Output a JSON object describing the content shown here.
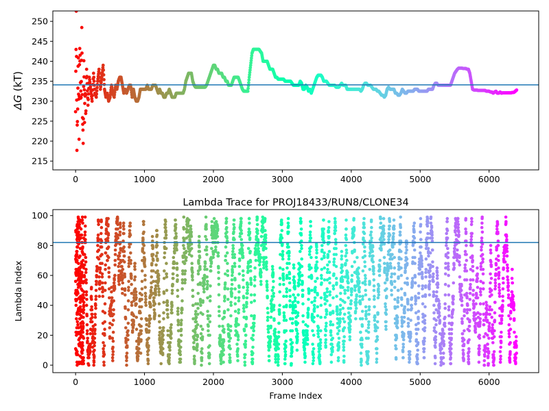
{
  "chart_data": [
    {
      "type": "scatter",
      "title": "",
      "xlabel": "",
      "ylabel_symbol": "ΔG",
      "ylabel_unit": " (kT)",
      "xlim": [
        -330,
        6720
      ],
      "ylim": [
        212.8,
        252.6
      ],
      "xticks": [
        0,
        1000,
        2000,
        3000,
        4000,
        5000,
        6000
      ],
      "yticks": [
        215,
        220,
        225,
        230,
        235,
        240,
        245,
        250
      ],
      "hline": 234.1,
      "hline_color": "#1f77b4",
      "colormap": "rainbow",
      "n_frames": 6400,
      "trace": [
        [
          0,
          230
        ],
        [
          10,
          250
        ],
        [
          20,
          220
        ],
        [
          30,
          230
        ],
        [
          40,
          240
        ],
        [
          50,
          222
        ],
        [
          60,
          246
        ],
        [
          70,
          236
        ],
        [
          80,
          228
        ],
        [
          90,
          248
        ],
        [
          100,
          226
        ],
        [
          110,
          219
        ],
        [
          120,
          241
        ],
        [
          130,
          226
        ],
        [
          140,
          233
        ],
        [
          150,
          225
        ],
        [
          160,
          238
        ],
        [
          180,
          229
        ],
        [
          200,
          236
        ],
        [
          220,
          233
        ],
        [
          240,
          230
        ],
        [
          260,
          237
        ],
        [
          280,
          232
        ],
        [
          300,
          231
        ],
        [
          320,
          235
        ],
        [
          340,
          238
        ],
        [
          360,
          233
        ],
        [
          380,
          236
        ],
        [
          400,
          239
        ],
        [
          420,
          233
        ],
        [
          440,
          231
        ],
        [
          460,
          232
        ],
        [
          480,
          230
        ],
        [
          500,
          231
        ],
        [
          520,
          234
        ],
        [
          540,
          232
        ],
        [
          560,
          231
        ],
        [
          580,
          234
        ],
        [
          600,
          233
        ],
        [
          620,
          235
        ],
        [
          640,
          236
        ],
        [
          660,
          236
        ],
        [
          680,
          234
        ],
        [
          700,
          232
        ],
        [
          720,
          233
        ],
        [
          740,
          232
        ],
        [
          760,
          233
        ],
        [
          780,
          234
        ],
        [
          800,
          234
        ],
        [
          820,
          231
        ],
        [
          840,
          233
        ],
        [
          860,
          231
        ],
        [
          880,
          230
        ],
        [
          900,
          230
        ],
        [
          920,
          231
        ],
        [
          940,
          233
        ],
        [
          960,
          233
        ],
        [
          980,
          233
        ],
        [
          1000,
          233
        ],
        [
          1020,
          233
        ],
        [
          1040,
          234
        ],
        [
          1060,
          233
        ],
        [
          1080,
          233
        ],
        [
          1100,
          233
        ],
        [
          1120,
          234
        ],
        [
          1140,
          234
        ],
        [
          1160,
          234
        ],
        [
          1180,
          233
        ],
        [
          1200,
          232
        ],
        [
          1220,
          233
        ],
        [
          1240,
          232
        ],
        [
          1260,
          232
        ],
        [
          1280,
          231
        ],
        [
          1300,
          231
        ],
        [
          1320,
          232
        ],
        [
          1340,
          232
        ],
        [
          1360,
          233
        ],
        [
          1380,
          232
        ],
        [
          1400,
          231
        ],
        [
          1420,
          231
        ],
        [
          1440,
          231
        ],
        [
          1460,
          232
        ],
        [
          1480,
          232
        ],
        [
          1500,
          232
        ],
        [
          1520,
          232
        ],
        [
          1540,
          232
        ],
        [
          1560,
          232
        ],
        [
          1580,
          233
        ],
        [
          1600,
          235
        ],
        [
          1620,
          236
        ],
        [
          1640,
          237
        ],
        [
          1660,
          237
        ],
        [
          1680,
          237
        ],
        [
          1700,
          235
        ],
        [
          1720,
          234
        ],
        [
          1740,
          233.5
        ],
        [
          1760,
          233.5
        ],
        [
          1780,
          233.5
        ],
        [
          1800,
          233.5
        ],
        [
          1820,
          233.5
        ],
        [
          1840,
          233.5
        ],
        [
          1860,
          233.5
        ],
        [
          1880,
          233.5
        ],
        [
          1900,
          234
        ],
        [
          1920,
          235
        ],
        [
          1940,
          236
        ],
        [
          1960,
          237
        ],
        [
          1980,
          238
        ],
        [
          2000,
          239
        ],
        [
          2020,
          239
        ],
        [
          2040,
          238
        ],
        [
          2060,
          238
        ],
        [
          2080,
          237
        ],
        [
          2100,
          237
        ],
        [
          2120,
          237
        ],
        [
          2140,
          236
        ],
        [
          2160,
          236
        ],
        [
          2180,
          235
        ],
        [
          2200,
          235
        ],
        [
          2220,
          234
        ],
        [
          2240,
          234
        ],
        [
          2260,
          234
        ],
        [
          2280,
          235
        ],
        [
          2300,
          236
        ],
        [
          2320,
          236
        ],
        [
          2340,
          236
        ],
        [
          2360,
          236
        ],
        [
          2380,
          235
        ],
        [
          2400,
          234
        ],
        [
          2420,
          233
        ],
        [
          2440,
          232.5
        ],
        [
          2460,
          232.5
        ],
        [
          2480,
          232.5
        ],
        [
          2500,
          232.5
        ],
        [
          2520,
          236
        ],
        [
          2540,
          239
        ],
        [
          2560,
          242
        ],
        [
          2580,
          243
        ],
        [
          2600,
          243
        ],
        [
          2620,
          243
        ],
        [
          2640,
          243
        ],
        [
          2660,
          243
        ],
        [
          2680,
          242.5
        ],
        [
          2700,
          242
        ],
        [
          2720,
          240
        ],
        [
          2740,
          240
        ],
        [
          2760,
          240
        ],
        [
          2780,
          240
        ],
        [
          2800,
          239
        ],
        [
          2820,
          238
        ],
        [
          2840,
          238
        ],
        [
          2860,
          238
        ],
        [
          2880,
          237
        ],
        [
          2900,
          236
        ],
        [
          2920,
          236
        ],
        [
          2940,
          235.5
        ],
        [
          2960,
          235.5
        ],
        [
          2980,
          235.5
        ],
        [
          3000,
          235.5
        ],
        [
          3020,
          235.5
        ],
        [
          3040,
          235
        ],
        [
          3060,
          235
        ],
        [
          3080,
          235
        ],
        [
          3100,
          235
        ],
        [
          3120,
          235
        ],
        [
          3140,
          234.5
        ],
        [
          3160,
          234
        ],
        [
          3180,
          234
        ],
        [
          3200,
          234
        ],
        [
          3220,
          234
        ],
        [
          3240,
          234
        ],
        [
          3260,
          235
        ],
        [
          3280,
          234.5
        ],
        [
          3300,
          233
        ],
        [
          3320,
          233
        ],
        [
          3340,
          234
        ],
        [
          3360,
          233.5
        ],
        [
          3380,
          232.5
        ],
        [
          3400,
          233
        ],
        [
          3420,
          232
        ],
        [
          3440,
          233
        ],
        [
          3460,
          234
        ],
        [
          3480,
          235
        ],
        [
          3500,
          236
        ],
        [
          3520,
          236.5
        ],
        [
          3540,
          236.5
        ],
        [
          3560,
          236.5
        ],
        [
          3580,
          236
        ],
        [
          3600,
          235
        ],
        [
          3620,
          235
        ],
        [
          3640,
          235
        ],
        [
          3660,
          234.5
        ],
        [
          3680,
          234
        ],
        [
          3700,
          234
        ],
        [
          3720,
          234
        ],
        [
          3740,
          234
        ],
        [
          3760,
          234
        ],
        [
          3780,
          233.5
        ],
        [
          3800,
          233.5
        ],
        [
          3820,
          233.5
        ],
        [
          3840,
          234
        ],
        [
          3860,
          234.5
        ],
        [
          3880,
          234
        ],
        [
          3900,
          234
        ],
        [
          3920,
          234
        ],
        [
          3940,
          233
        ],
        [
          3960,
          233
        ],
        [
          3980,
          233
        ],
        [
          4000,
          233
        ],
        [
          4020,
          233
        ],
        [
          4040,
          233
        ],
        [
          4060,
          233
        ],
        [
          4080,
          233
        ],
        [
          4100,
          233
        ],
        [
          4120,
          233
        ],
        [
          4140,
          232.5
        ],
        [
          4160,
          233
        ],
        [
          4180,
          234
        ],
        [
          4200,
          234.5
        ],
        [
          4220,
          234.5
        ],
        [
          4240,
          234
        ],
        [
          4260,
          234
        ],
        [
          4280,
          234
        ],
        [
          4300,
          233.5
        ],
        [
          4320,
          233
        ],
        [
          4340,
          233
        ],
        [
          4360,
          233
        ],
        [
          4380,
          232.5
        ],
        [
          4400,
          232.5
        ],
        [
          4420,
          232
        ],
        [
          4440,
          231.5
        ],
        [
          4460,
          231.5
        ],
        [
          4480,
          231
        ],
        [
          4500,
          231.5
        ],
        [
          4520,
          233
        ],
        [
          4540,
          233.5
        ],
        [
          4560,
          233
        ],
        [
          4580,
          233
        ],
        [
          4600,
          233
        ],
        [
          4620,
          233
        ],
        [
          4640,
          232
        ],
        [
          4660,
          232
        ],
        [
          4680,
          231.5
        ],
        [
          4700,
          231.5
        ],
        [
          4720,
          232
        ],
        [
          4740,
          233
        ],
        [
          4760,
          232.5
        ],
        [
          4780,
          232
        ],
        [
          4800,
          232
        ],
        [
          4820,
          232.5
        ],
        [
          4840,
          232.5
        ],
        [
          4860,
          232.5
        ],
        [
          4880,
          232.5
        ],
        [
          4900,
          232.5
        ],
        [
          4920,
          233
        ],
        [
          4940,
          233
        ],
        [
          4960,
          233
        ],
        [
          4980,
          232.5
        ],
        [
          5000,
          232.5
        ],
        [
          5020,
          232.5
        ],
        [
          5040,
          232.5
        ],
        [
          5060,
          232.5
        ],
        [
          5080,
          232.5
        ],
        [
          5100,
          232.5
        ],
        [
          5120,
          233
        ],
        [
          5140,
          233
        ],
        [
          5160,
          233
        ],
        [
          5180,
          233
        ],
        [
          5200,
          234
        ],
        [
          5220,
          234.5
        ],
        [
          5240,
          234.5
        ],
        [
          5260,
          234
        ],
        [
          5280,
          234
        ],
        [
          5300,
          234
        ],
        [
          5320,
          234
        ],
        [
          5340,
          234
        ],
        [
          5360,
          234
        ],
        [
          5380,
          234
        ],
        [
          5400,
          234
        ],
        [
          5420,
          234
        ],
        [
          5440,
          234
        ],
        [
          5460,
          235
        ],
        [
          5480,
          236
        ],
        [
          5500,
          237
        ],
        [
          5520,
          237.5
        ],
        [
          5540,
          238
        ],
        [
          5560,
          238.3
        ],
        [
          5580,
          238.3
        ],
        [
          5600,
          238.3
        ],
        [
          5620,
          238.2
        ],
        [
          5640,
          238.2
        ],
        [
          5660,
          238.2
        ],
        [
          5680,
          238
        ],
        [
          5700,
          238
        ],
        [
          5720,
          237
        ],
        [
          5740,
          235
        ],
        [
          5760,
          233
        ],
        [
          5780,
          232.8
        ],
        [
          5800,
          232.8
        ],
        [
          5820,
          232.8
        ],
        [
          5840,
          232.7
        ],
        [
          5860,
          232.7
        ],
        [
          5880,
          232.7
        ],
        [
          5900,
          232.7
        ],
        [
          5920,
          232.7
        ],
        [
          5940,
          232.7
        ],
        [
          5960,
          232.5
        ],
        [
          5980,
          232.5
        ],
        [
          6000,
          232.5
        ],
        [
          6020,
          232.3
        ],
        [
          6040,
          232.3
        ],
        [
          6060,
          232
        ],
        [
          6080,
          232.3
        ],
        [
          6100,
          232.5
        ],
        [
          6120,
          232
        ],
        [
          6140,
          232
        ],
        [
          6160,
          232.3
        ],
        [
          6180,
          232
        ],
        [
          6200,
          232.1
        ],
        [
          6220,
          232.1
        ],
        [
          6240,
          232.1
        ],
        [
          6260,
          232.1
        ],
        [
          6280,
          232.1
        ],
        [
          6300,
          232.1
        ],
        [
          6320,
          232.1
        ],
        [
          6340,
          232.2
        ],
        [
          6360,
          232.2
        ],
        [
          6380,
          232.5
        ],
        [
          6400,
          232.8
        ]
      ]
    },
    {
      "type": "scatter",
      "title": "Lambda Trace for PROJ18433/RUN8/CLONE34",
      "xlabel": "Frame Index",
      "ylabel": "Lambda Index",
      "xlim": [
        -330,
        6720
      ],
      "ylim": [
        -5,
        104
      ],
      "xticks": [
        0,
        1000,
        2000,
        3000,
        4000,
        5000,
        6000
      ],
      "yticks": [
        0,
        20,
        40,
        60,
        80,
        100
      ],
      "hline": 82,
      "hline_color": "#1f77b4",
      "colormap": "rainbow",
      "n_frames": 6400,
      "n_lambda": 100
    }
  ]
}
